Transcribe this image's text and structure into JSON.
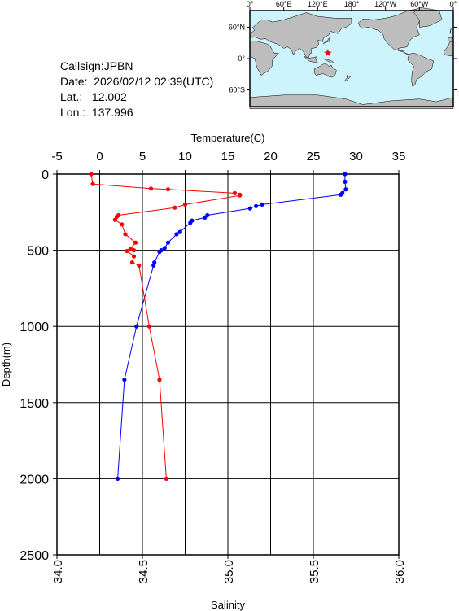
{
  "info": {
    "callsign": "Callsign:JPBN",
    "date": "Date:  2026/02/12 02:39(UTC)",
    "lat": "Lat.:   12.002",
    "lon": "Lon.:  137.996"
  },
  "map": {
    "top_labels": [
      "0°",
      "60°E",
      "120°E",
      "180°",
      "120°W",
      "60°W",
      "0°"
    ],
    "lat_labels": [
      "60°N",
      "0°",
      "60°S"
    ],
    "ocean_color": "#cdf4fc",
    "land_color": "#bdbdbd",
    "marker": {
      "symbol": "star",
      "color": "#ff0000",
      "lat": 12.002,
      "lon": 137.996
    }
  },
  "chart_data": {
    "type": "line",
    "title": "",
    "ylabel": "Depth(m)",
    "ylim": [
      0,
      2500
    ],
    "y_reversed": true,
    "y_ticks": [
      0,
      500,
      1000,
      1500,
      2000,
      2500
    ],
    "x_top": {
      "label": "Temperature(C)",
      "range": [
        -5,
        35
      ],
      "ticks": [
        -5,
        0,
        5,
        10,
        15,
        20,
        25,
        30,
        35
      ],
      "tick_labels": [
        "-5",
        "0",
        "5",
        "10",
        "15",
        "20",
        "25",
        "30",
        "35"
      ]
    },
    "x_bottom": {
      "label": "Salinity",
      "range": [
        34.0,
        36.0
      ],
      "ticks": [
        34.0,
        34.5,
        35.0,
        35.5,
        36.0
      ],
      "tick_labels": [
        "34.0",
        "34.5",
        "35.0",
        "35.5",
        "36.0"
      ]
    },
    "grid": true,
    "series": [
      {
        "axis": "top",
        "color": "#0000ff",
        "depth": [
          0,
          50,
          100,
          125,
          135,
          200,
          210,
          225,
          270,
          285,
          305,
          320,
          380,
          395,
          450,
          485,
          500,
          510,
          580,
          600,
          1000,
          1350,
          2000
        ],
        "values": [
          28.7,
          28.7,
          28.8,
          28.4,
          28.2,
          19.0,
          18.3,
          17.6,
          12.6,
          12.3,
          10.8,
          10.6,
          9.4,
          9.0,
          8.0,
          7.6,
          7.2,
          7.0,
          6.4,
          6.3,
          4.3,
          2.9,
          2.1
        ]
      },
      {
        "axis": "bottom",
        "color": "#ff0000",
        "depth": [
          0,
          65,
          95,
          100,
          125,
          135,
          140,
          200,
          220,
          270,
          280,
          300,
          330,
          395,
          450,
          490,
          500,
          505,
          540,
          580,
          600,
          1000,
          1350,
          2000
        ],
        "values": [
          34.2,
          34.21,
          34.55,
          34.65,
          35.04,
          35.07,
          35.07,
          34.75,
          34.69,
          34.36,
          34.35,
          34.34,
          34.38,
          34.4,
          34.46,
          34.43,
          34.45,
          34.41,
          34.45,
          34.44,
          34.48,
          34.54,
          34.6,
          34.64
        ]
      }
    ]
  }
}
